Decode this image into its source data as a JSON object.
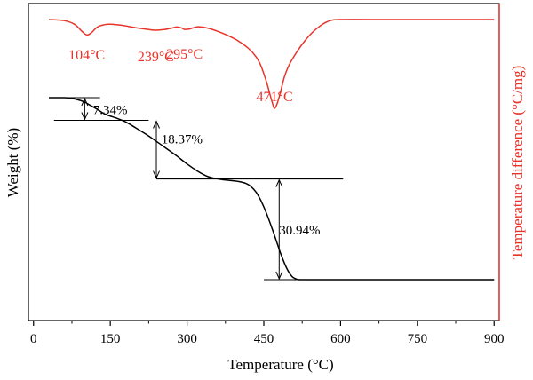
{
  "chart_data": {
    "type": "line",
    "title": "",
    "xlabel": "Temperature (°C)",
    "ylabel_left": "Weight (%)",
    "ylabel_right": "Temperature difference (°C/mg)",
    "xlim": [
      -10,
      910
    ],
    "xticks": [
      0,
      150,
      300,
      450,
      600,
      750,
      900
    ],
    "xtick_labels": [
      "0",
      "150",
      "300",
      "450",
      "600",
      "750",
      "900"
    ],
    "colors": {
      "tg": "#000000",
      "dta": "#e8332a",
      "right_axis": "#e8332a"
    },
    "grid": false,
    "series": [
      {
        "axis": "left",
        "color": "#000000",
        "x": [
          30,
          60,
          75,
          90,
          100,
          110,
          125,
          140,
          160,
          180,
          200,
          220,
          240,
          260,
          280,
          300,
          320,
          340,
          360,
          380,
          400,
          415,
          425,
          435,
          445,
          455,
          465,
          475,
          485,
          495,
          505,
          515,
          525,
          540,
          555,
          570,
          600,
          700,
          800,
          900
        ],
        "y": [
          100,
          100,
          99.8,
          99.2,
          98.6,
          97.7,
          96.3,
          94.8,
          93.7,
          92.4,
          90.5,
          88.5,
          86.3,
          84.0,
          81.7,
          79.2,
          77.0,
          75.3,
          74.5,
          74.1,
          73.7,
          73.1,
          72.1,
          70.3,
          67.5,
          63.8,
          59.5,
          54.8,
          50.2,
          46.4,
          43.9,
          43.0,
          42.9,
          42.9,
          42.9,
          42.9,
          42.9,
          42.9,
          42.9,
          42.9
        ]
      },
      {
        "axis": "right",
        "color": "#e8332a",
        "x": [
          30,
          60,
          80,
          95,
          104,
          113,
          125,
          145,
          170,
          200,
          230,
          239,
          255,
          270,
          280,
          290,
          295,
          305,
          320,
          340,
          360,
          380,
          400,
          420,
          435,
          445,
          455,
          462,
          468,
          471,
          475,
          482,
          490,
          500,
          515,
          530,
          545,
          560,
          570,
          580,
          600,
          700,
          800,
          900
        ],
        "y": [
          0,
          -0.5,
          -2.2,
          -5.6,
          -7.2,
          -6.2,
          -3.5,
          -2.2,
          -2.6,
          -3.8,
          -4.8,
          -5.0,
          -4.7,
          -4.0,
          -3.5,
          -4.0,
          -4.6,
          -4.4,
          -3.4,
          -4.0,
          -5.5,
          -7.5,
          -10.0,
          -13.5,
          -17.5,
          -22.0,
          -29.0,
          -35.0,
          -40.0,
          -41.5,
          -40.0,
          -34.5,
          -27.0,
          -21.0,
          -15.0,
          -10.0,
          -6.0,
          -3.0,
          -1.5,
          -0.5,
          0,
          0,
          0,
          0
        ]
      }
    ],
    "annotations": [
      {
        "label": "7.34%",
        "x": 150,
        "y": 96.3
      },
      {
        "label": "18.37%",
        "x": 290,
        "y": 87
      },
      {
        "label": "30.94%",
        "x": 520,
        "y": 58.5
      }
    ],
    "peak_labels": [
      {
        "label": "104°C",
        "x": 104
      },
      {
        "label": "239°C",
        "x": 239
      },
      {
        "label": "295°C",
        "x": 295
      },
      {
        "label": "471°C",
        "x": 471
      }
    ]
  }
}
